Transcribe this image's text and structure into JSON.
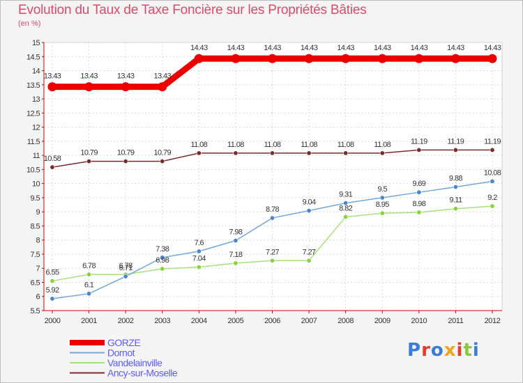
{
  "title": "Evolution du Taux de Taxe Foncière sur les Propriétés Bâties",
  "unit": "(en %)",
  "logo": {
    "text": "Proxiti",
    "letters": [
      "P",
      "r",
      "o",
      "x",
      "i",
      "t",
      "i"
    ],
    "colors": [
      "#3c7bd6",
      "#e63b2e",
      "#3c7bd6",
      "#f3a21c",
      "#e63b2e",
      "#8cc63f",
      "#3c7bd6"
    ]
  },
  "chart_data": {
    "type": "line",
    "x": [
      "2000",
      "2001",
      "2002",
      "2003",
      "2004",
      "2005",
      "2006",
      "2007",
      "2008",
      "2009",
      "2010",
      "2011",
      "2012"
    ],
    "ylim": [
      5.5,
      15
    ],
    "yticks": [
      "5.5",
      "6",
      "6.5",
      "7",
      "7.5",
      "8",
      "8.5",
      "9",
      "9.5",
      "10",
      "10.5",
      "11",
      "11.5",
      "12",
      "12.5",
      "13",
      "13.5",
      "14",
      "14.5",
      "15"
    ],
    "grid": true,
    "legend_position": "bottom-left",
    "series": [
      {
        "name": "GORZE",
        "color": "#ee0000",
        "point_color": "#ee0000",
        "legend_color": "#5b5bff",
        "width": 9,
        "values": [
          13.43,
          13.43,
          13.43,
          13.43,
          14.43,
          14.43,
          14.43,
          14.43,
          14.43,
          14.43,
          14.43,
          14.43,
          14.43
        ],
        "labels": [
          "13.43",
          "13.43",
          "13.43",
          "13.43",
          "14.43",
          "14.43",
          "14.43",
          "14.43",
          "14.43",
          "14.43",
          "14.43",
          "14.43",
          "14.43"
        ]
      },
      {
        "name": "Dornot",
        "color": "#6fa8dc",
        "point_color": "#4a86c8",
        "legend_color": "#5b5bff",
        "width": 1.5,
        "values": [
          5.92,
          6.1,
          6.71,
          7.38,
          7.6,
          7.98,
          8.78,
          9.04,
          9.31,
          9.5,
          9.69,
          9.88,
          10.08
        ],
        "labels": [
          "5.92",
          "6.1",
          "6.71",
          "7.38",
          "7.6",
          "7.98",
          "8.78",
          "9.04",
          "9.31",
          "9.5",
          "9.69",
          "9.88",
          "10.08"
        ]
      },
      {
        "name": "Vandelainville",
        "color": "#a6e07a",
        "point_color": "#88d33c",
        "legend_color": "#5b5bff",
        "width": 1.5,
        "values": [
          6.55,
          6.78,
          6.78,
          6.98,
          7.04,
          7.18,
          7.27,
          7.27,
          8.82,
          8.95,
          8.98,
          9.11,
          9.2
        ],
        "labels": [
          "6.55",
          "6.78",
          "6.78",
          "6.98",
          "7.04",
          "7.18",
          "7.27",
          "7.27",
          "8.82",
          "8.95",
          "8.98",
          "9.11",
          "9.2"
        ]
      },
      {
        "name": "Ancy-sur-Moselle",
        "color": "#7a2a2a",
        "point_color": "#7a2a2a",
        "legend_color": "#5b5bff",
        "width": 1.5,
        "values": [
          10.58,
          10.79,
          10.79,
          10.79,
          11.08,
          11.08,
          11.08,
          11.08,
          11.08,
          11.08,
          11.19,
          11.19,
          11.19
        ],
        "labels": [
          "10.58",
          "10.79",
          "10.79",
          "10.79",
          "11.08",
          "11.08",
          "11.08",
          "11.08",
          "11.08",
          "11.08",
          "11.19",
          "11.19",
          "11.19"
        ]
      }
    ]
  }
}
